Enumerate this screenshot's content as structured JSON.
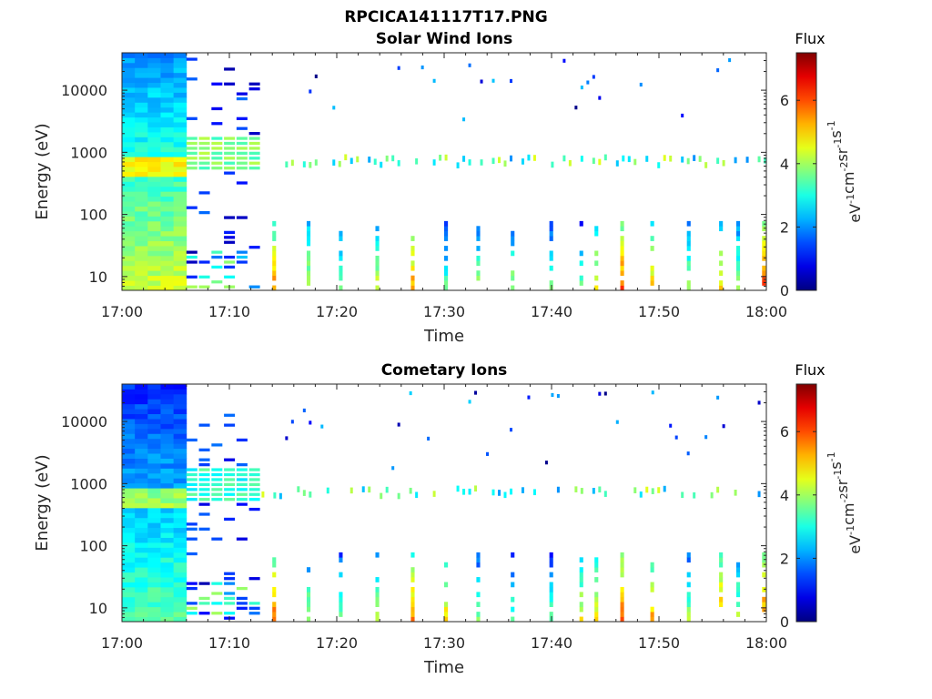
{
  "figure": {
    "filename_title": "RPCICA141117T17.PNG"
  },
  "chart_data": [
    {
      "type": "heatmap",
      "title": "Solar Wind Ions",
      "xlabel": "Time",
      "ylabel": "Energy (eV)",
      "x_tick_labels": [
        "17:00",
        "17:10",
        "17:20",
        "17:30",
        "17:40",
        "17:50",
        "18:00"
      ],
      "x_range": [
        "17:00",
        "18:00"
      ],
      "y_scale": "log",
      "y_tick_labels": [
        "10",
        "100",
        "1000",
        "10000"
      ],
      "y_range": [
        6,
        40000
      ],
      "colorbar": {
        "title": "Flux",
        "unit_base": [
          "eV",
          "cm",
          "sr",
          "s"
        ],
        "unit_exp": [
          "-1",
          "-2",
          "-1",
          "-1"
        ],
        "ticks": [
          "0",
          "2",
          "4",
          "6"
        ],
        "range": [
          0,
          7.5
        ],
        "colormap": "jet"
      },
      "grid": false,
      "time_span_min": 60,
      "seed": 17,
      "energy_bands": [
        {
          "t0": 0.0,
          "t1": 6.0,
          "emin": 6,
          "emax": 40000,
          "level": 2.0,
          "kind": "dense"
        },
        {
          "t0": 6.0,
          "t1": 13.0,
          "emin": 600,
          "emax": 1500,
          "level": 3.2,
          "kind": "band"
        }
      ],
      "bursts": [
        {
          "t": 14.0,
          "level": 5.5
        },
        {
          "t": 17.2,
          "level": 4.5
        },
        {
          "t": 20.2,
          "level": 4.0
        },
        {
          "t": 23.6,
          "level": 4.5
        },
        {
          "t": 26.9,
          "level": 5.5
        },
        {
          "t": 30.0,
          "level": 3.5
        },
        {
          "t": 33.0,
          "level": 4.0
        },
        {
          "t": 36.2,
          "level": 4.0
        },
        {
          "t": 39.8,
          "level": 3.8
        },
        {
          "t": 42.6,
          "level": 3.6
        },
        {
          "t": 44.0,
          "level": 4.8
        },
        {
          "t": 46.4,
          "level": 6.0
        },
        {
          "t": 49.2,
          "level": 5.0
        },
        {
          "t": 52.6,
          "level": 4.2
        },
        {
          "t": 55.6,
          "level": 5.0
        },
        {
          "t": 57.2,
          "level": 4.2
        },
        {
          "t": 59.6,
          "level": 6.2
        }
      ]
    },
    {
      "type": "heatmap",
      "title": "Cometary Ions",
      "xlabel": "Time",
      "ylabel": "Energy (eV)",
      "x_tick_labels": [
        "17:00",
        "17:10",
        "17:20",
        "17:30",
        "17:40",
        "17:50",
        "18:00"
      ],
      "x_range": [
        "17:00",
        "18:00"
      ],
      "y_scale": "log",
      "y_tick_labels": [
        "10",
        "100",
        "1000",
        "10000"
      ],
      "y_range": [
        6,
        40000
      ],
      "colorbar": {
        "title": "Flux",
        "unit_base": [
          "eV",
          "cm",
          "sr",
          "s"
        ],
        "unit_exp": [
          "-1",
          "-2",
          "-1",
          "-1"
        ],
        "ticks": [
          "0",
          "2",
          "4",
          "6"
        ],
        "range": [
          0,
          7.5
        ],
        "colormap": "jet"
      },
      "grid": false,
      "time_span_min": 60,
      "seed": 91,
      "energy_bands": [
        {
          "t0": 0.0,
          "t1": 6.0,
          "emin": 6,
          "emax": 40000,
          "level": 1.2,
          "kind": "dense"
        },
        {
          "t0": 6.0,
          "t1": 13.0,
          "emin": 600,
          "emax": 1500,
          "level": 2.6,
          "kind": "band"
        }
      ],
      "bursts": [
        {
          "t": 14.0,
          "level": 5.8
        },
        {
          "t": 17.2,
          "level": 4.2
        },
        {
          "t": 20.2,
          "level": 3.8
        },
        {
          "t": 23.6,
          "level": 4.2
        },
        {
          "t": 26.9,
          "level": 5.6
        },
        {
          "t": 30.0,
          "level": 5.0
        },
        {
          "t": 33.0,
          "level": 3.8
        },
        {
          "t": 36.2,
          "level": 3.6
        },
        {
          "t": 39.8,
          "level": 3.6
        },
        {
          "t": 42.6,
          "level": 4.6
        },
        {
          "t": 44.0,
          "level": 5.0
        },
        {
          "t": 46.4,
          "level": 6.0
        },
        {
          "t": 49.2,
          "level": 5.4
        },
        {
          "t": 52.6,
          "level": 4.0
        },
        {
          "t": 55.6,
          "level": 5.6
        },
        {
          "t": 57.2,
          "level": 4.2
        },
        {
          "t": 59.6,
          "level": 5.8
        }
      ]
    }
  ]
}
